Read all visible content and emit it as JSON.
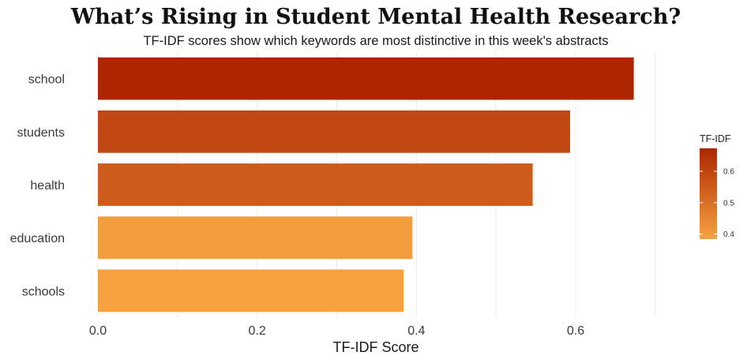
{
  "chart_data": {
    "type": "bar",
    "orientation": "horizontal",
    "title": "What’s Rising in Student Mental Health Research?",
    "subtitle": "TF-IDF scores show which keywords are most distinctive in this week's abstracts",
    "xlabel": "TF-IDF Score",
    "ylabel": "",
    "categories": [
      "school",
      "students",
      "health",
      "education",
      "schools"
    ],
    "values": [
      0.673,
      0.593,
      0.546,
      0.395,
      0.384
    ],
    "xlim": [
      0,
      0.72
    ],
    "xticks": [
      0.0,
      0.2,
      0.4,
      0.6
    ],
    "xtick_labels": [
      "0.0",
      "0.2",
      "0.4",
      "0.6"
    ],
    "grid": true,
    "legend": {
      "title": "TF-IDF",
      "placement": "right",
      "range": [
        0.384,
        0.673
      ],
      "ticks": [
        0.4,
        0.5,
        0.6
      ],
      "tick_labels": [
        "0.4",
        "0.5",
        "0.6"
      ],
      "color_low": "#f7a240",
      "color_high": "#ad2600"
    }
  }
}
